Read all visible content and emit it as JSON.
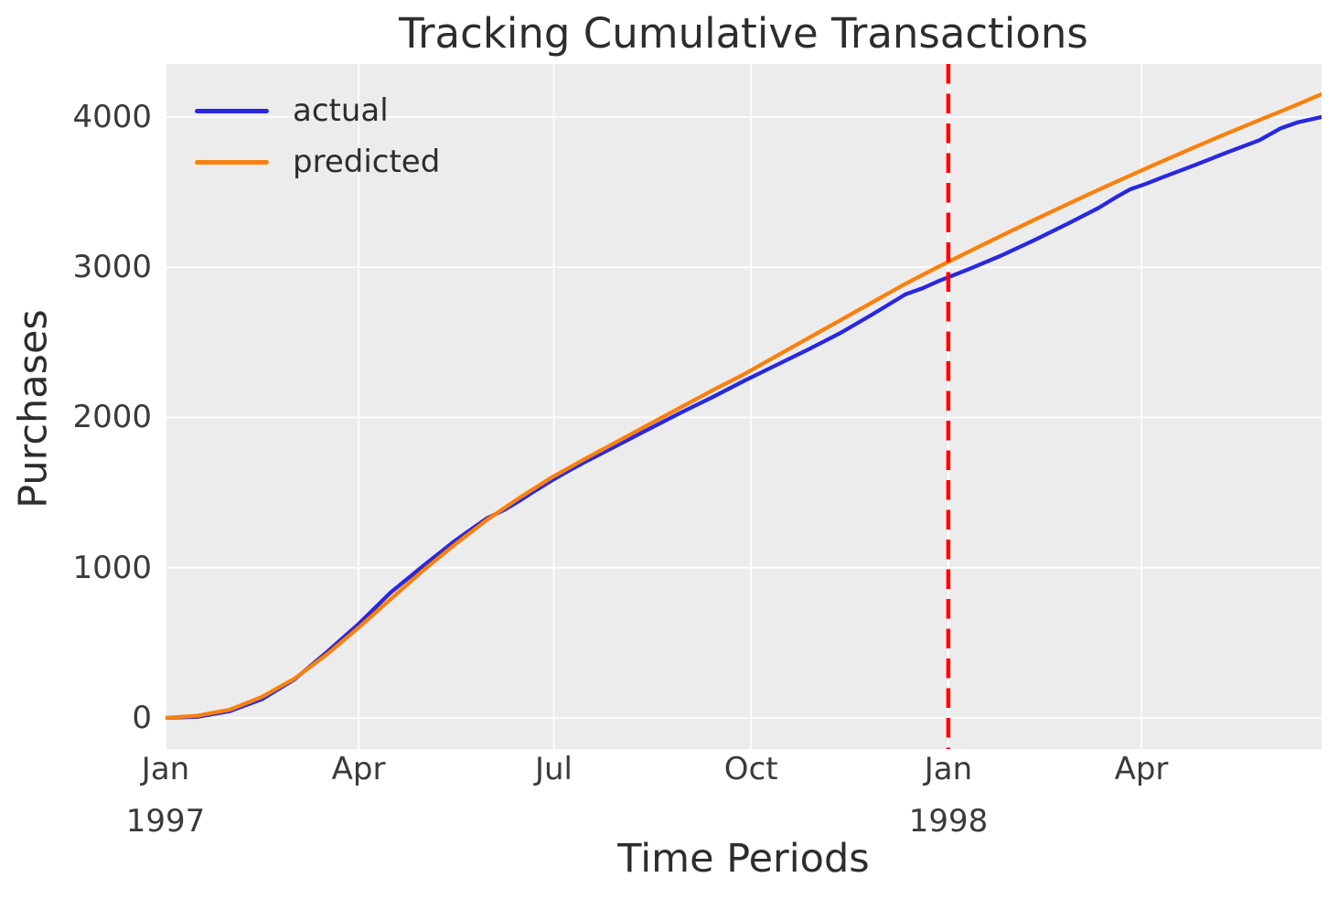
{
  "chart_data": {
    "type": "line",
    "title": "Tracking Cumulative Transactions",
    "xlabel": "Time Periods",
    "ylabel": "Purchases",
    "x_unit": "days since 1997-01-01",
    "xlim": [
      0,
      539
    ],
    "ylim": [
      -207,
      4353
    ],
    "grid": true,
    "legend_position": "upper left",
    "y_ticks": [
      0,
      1000,
      2000,
      3000,
      4000
    ],
    "x_ticks": [
      {
        "pos": 0,
        "label": "Jan",
        "year": "1997"
      },
      {
        "pos": 90,
        "label": "Apr",
        "year": ""
      },
      {
        "pos": 181,
        "label": "Jul",
        "year": ""
      },
      {
        "pos": 273,
        "label": "Oct",
        "year": ""
      },
      {
        "pos": 365,
        "label": "Jan",
        "year": "1998"
      },
      {
        "pos": 455,
        "label": "Apr",
        "year": ""
      }
    ],
    "vline": {
      "x": 365,
      "color": "#ff0000",
      "style": "dashed"
    },
    "series": [
      {
        "name": "actual",
        "color": "#2a28dc",
        "points": [
          [
            0,
            0
          ],
          [
            15,
            8
          ],
          [
            30,
            45
          ],
          [
            45,
            125
          ],
          [
            60,
            255
          ],
          [
            75,
            435
          ],
          [
            90,
            625
          ],
          [
            105,
            835
          ],
          [
            120,
            1010
          ],
          [
            135,
            1180
          ],
          [
            143,
            1260
          ],
          [
            150,
            1330
          ],
          [
            158,
            1385
          ],
          [
            165,
            1445
          ],
          [
            172,
            1510
          ],
          [
            180,
            1580
          ],
          [
            188,
            1645
          ],
          [
            195,
            1700
          ],
          [
            210,
            1810
          ],
          [
            225,
            1920
          ],
          [
            240,
            2030
          ],
          [
            255,
            2135
          ],
          [
            270,
            2245
          ],
          [
            285,
            2350
          ],
          [
            300,
            2455
          ],
          [
            315,
            2565
          ],
          [
            330,
            2690
          ],
          [
            345,
            2820
          ],
          [
            353,
            2860
          ],
          [
            360,
            2905
          ],
          [
            368,
            2950
          ],
          [
            375,
            2990
          ],
          [
            390,
            3080
          ],
          [
            405,
            3180
          ],
          [
            420,
            3285
          ],
          [
            435,
            3395
          ],
          [
            443,
            3465
          ],
          [
            450,
            3520
          ],
          [
            457,
            3555
          ],
          [
            465,
            3600
          ],
          [
            480,
            3680
          ],
          [
            495,
            3765
          ],
          [
            510,
            3845
          ],
          [
            520,
            3925
          ],
          [
            528,
            3965
          ],
          [
            539,
            4000
          ]
        ]
      },
      {
        "name": "predicted",
        "color": "#f8810e",
        "points": [
          [
            0,
            0
          ],
          [
            15,
            15
          ],
          [
            30,
            55
          ],
          [
            45,
            140
          ],
          [
            60,
            260
          ],
          [
            75,
            420
          ],
          [
            90,
            600
          ],
          [
            105,
            790
          ],
          [
            120,
            980
          ],
          [
            135,
            1155
          ],
          [
            150,
            1320
          ],
          [
            165,
            1465
          ],
          [
            180,
            1600
          ],
          [
            195,
            1720
          ],
          [
            210,
            1835
          ],
          [
            225,
            1950
          ],
          [
            240,
            2065
          ],
          [
            255,
            2180
          ],
          [
            270,
            2290
          ],
          [
            285,
            2410
          ],
          [
            300,
            2530
          ],
          [
            315,
            2650
          ],
          [
            330,
            2770
          ],
          [
            345,
            2890
          ],
          [
            360,
            3000
          ],
          [
            375,
            3107
          ],
          [
            390,
            3212
          ],
          [
            405,
            3315
          ],
          [
            420,
            3416
          ],
          [
            435,
            3515
          ],
          [
            450,
            3612
          ],
          [
            465,
            3707
          ],
          [
            480,
            3800
          ],
          [
            495,
            3891
          ],
          [
            510,
            3980
          ],
          [
            525,
            4067
          ],
          [
            539,
            4152
          ]
        ]
      }
    ],
    "styles": {
      "figure_bg": "#ffffff",
      "plot_bg": "#ececec",
      "grid_color": "#ffffff",
      "title_color": "#2d2d2d",
      "tick_color": "#3a3a3a",
      "line_width": 4.3,
      "vline_dash": "21.5 11"
    }
  }
}
